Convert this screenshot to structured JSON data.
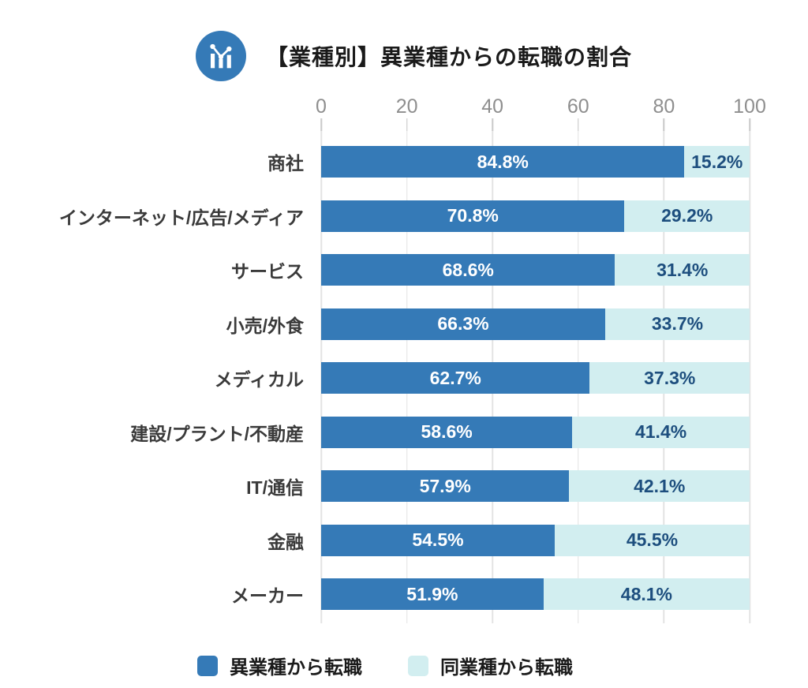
{
  "header": {
    "title": "【業種別】異業種からの転職の割合",
    "icon": "bar-line-chart-icon"
  },
  "chart_data": {
    "type": "bar",
    "orientation": "horizontal",
    "stacked": true,
    "title": "【業種別】異業種からの転職の割合",
    "categories": [
      "商社",
      "インターネット/広告/メディア",
      "サービス",
      "小売/外食",
      "メディカル",
      "建設/プラント/不動産",
      "IT/通信",
      "金融",
      "メーカー"
    ],
    "series": [
      {
        "name": "異業種から転職",
        "color": "#357ab7",
        "label_color": "#ffffff",
        "values": [
          84.8,
          70.8,
          68.6,
          66.3,
          62.7,
          58.6,
          57.9,
          54.5,
          51.9
        ]
      },
      {
        "name": "同業種から転職",
        "color": "#d2eef0",
        "label_color": "#1d4e7e",
        "values": [
          15.2,
          29.2,
          31.4,
          33.7,
          37.3,
          41.4,
          42.1,
          45.5,
          48.1
        ]
      }
    ],
    "value_suffix": "%",
    "xlim": [
      0,
      100
    ],
    "x_ticks": [
      0,
      20,
      40,
      60,
      80,
      100
    ],
    "grid": true,
    "legend_position": "bottom"
  },
  "style": {
    "grid_color": "#e3e3e3",
    "tick_stub_color": "#cbcbcb",
    "axis_label_color": "#8e8e8e",
    "icon_bg_color": "#357ab7"
  }
}
